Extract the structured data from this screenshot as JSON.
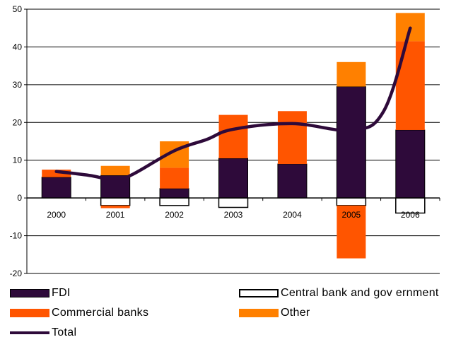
{
  "chart_data": {
    "type": "bar",
    "stacked": true,
    "categories": [
      "2000",
      "2001",
      "2002",
      "2003",
      "2004",
      "2005",
      "2006"
    ],
    "ylim": [
      -20,
      50
    ],
    "yticks": [
      "50",
      "40",
      "30",
      "20",
      "10",
      "0",
      "-10",
      "-20"
    ],
    "grid": true,
    "legend_position": "bottom",
    "series": [
      {
        "name": "FDI",
        "type": "bar",
        "color": "#2e0a3a",
        "values": [
          5.5,
          6,
          2.5,
          10.5,
          9,
          29.5,
          18
        ]
      },
      {
        "name": "Central bank and gov ernment",
        "type": "bar",
        "color": "#ffffff",
        "values": [
          0,
          -2,
          -2,
          -2.5,
          0,
          -2,
          -4
        ]
      },
      {
        "name": "Commercial banks",
        "type": "bar",
        "color": "#ff5500",
        "values": [
          2,
          -0.7,
          5.5,
          11.5,
          14,
          -14,
          23.5
        ]
      },
      {
        "name": "Other",
        "type": "bar",
        "color": "#ff8000",
        "values": [
          0,
          2.5,
          7,
          0,
          0,
          6.5,
          7.5
        ]
      },
      {
        "name": "Total",
        "type": "line",
        "color": "#2e0a3a",
        "values": [
          7,
          4.8,
          12.5,
          18.2,
          19.7,
          18,
          45
        ]
      }
    ],
    "extra_line_points": [
      {
        "x": 0.55,
        "y": 6
      },
      {
        "x": 1.3,
        "y": 6.3
      },
      {
        "x": 2.55,
        "y": 15.5
      },
      {
        "x": 5.55,
        "y": 23
      }
    ]
  },
  "legend": {
    "items": [
      {
        "label": "FDI",
        "color": "#2e0a3a",
        "kind": "bar"
      },
      {
        "label": "Central bank and gov ernment",
        "color": "#ffffff",
        "kind": "bar"
      },
      {
        "label": "Commercial banks",
        "color": "#ff5500",
        "kind": "bar"
      },
      {
        "label": "Other",
        "color": "#ff8000",
        "kind": "bar"
      },
      {
        "label": "Total",
        "color": "#2e0a3a",
        "kind": "line"
      }
    ]
  }
}
